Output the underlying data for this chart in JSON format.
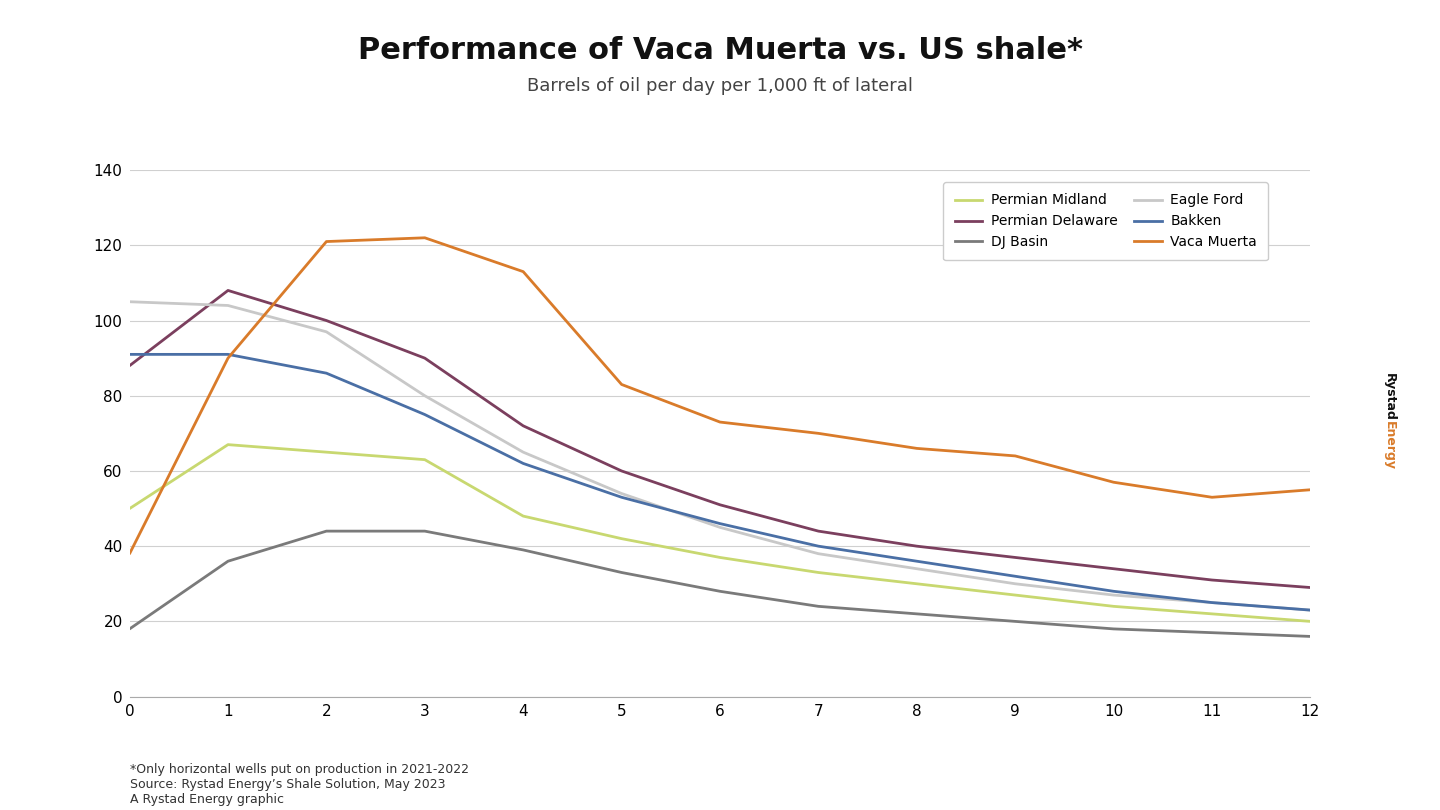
{
  "title": "Performance of Vaca Muerta vs. US shale*",
  "subtitle": "Barrels of oil per day per 1,000 ft of lateral",
  "footnote": "*Only horizontal wells put on production in 2021-2022\nSource: Rystad Energy’s Shale Solution, May 2023\nA Rystad Energy graphic",
  "xlim": [
    0,
    12
  ],
  "ylim": [
    0,
    140
  ],
  "xticks": [
    0,
    1,
    2,
    3,
    4,
    5,
    6,
    7,
    8,
    9,
    10,
    11,
    12
  ],
  "yticks": [
    0,
    20,
    40,
    60,
    80,
    100,
    120,
    140
  ],
  "series": {
    "Permian Midland": {
      "color": "#c8d870",
      "x": [
        0,
        1,
        2,
        3,
        4,
        5,
        6,
        7,
        8,
        9,
        10,
        11,
        12
      ],
      "y": [
        50,
        67,
        65,
        63,
        48,
        42,
        37,
        33,
        30,
        27,
        24,
        22,
        20
      ]
    },
    "Permian Delaware": {
      "color": "#7b3f5e",
      "x": [
        0,
        1,
        2,
        3,
        4,
        5,
        6,
        7,
        8,
        9,
        10,
        11,
        12
      ],
      "y": [
        88,
        108,
        100,
        90,
        72,
        60,
        51,
        44,
        40,
        37,
        34,
        31,
        29
      ]
    },
    "DJ Basin": {
      "color": "#7a7a7a",
      "x": [
        0,
        1,
        2,
        3,
        4,
        5,
        6,
        7,
        8,
        9,
        10,
        11,
        12
      ],
      "y": [
        18,
        36,
        44,
        44,
        39,
        33,
        28,
        24,
        22,
        20,
        18,
        17,
        16
      ]
    },
    "Eagle Ford": {
      "color": "#c8c8c8",
      "x": [
        0,
        1,
        2,
        3,
        4,
        5,
        6,
        7,
        8,
        9,
        10,
        11,
        12
      ],
      "y": [
        105,
        104,
        97,
        80,
        65,
        54,
        45,
        38,
        34,
        30,
        27,
        25,
        23
      ]
    },
    "Bakken": {
      "color": "#4a6fa5",
      "x": [
        0,
        1,
        2,
        3,
        4,
        5,
        6,
        7,
        8,
        9,
        10,
        11,
        12
      ],
      "y": [
        91,
        91,
        86,
        75,
        62,
        53,
        46,
        40,
        36,
        32,
        28,
        25,
        23
      ]
    },
    "Vaca Muerta": {
      "color": "#d97b2a",
      "x": [
        0,
        1,
        2,
        3,
        4,
        5,
        6,
        7,
        8,
        9,
        10,
        11,
        12
      ],
      "y": [
        38,
        90,
        121,
        122,
        113,
        83,
        73,
        70,
        66,
        64,
        57,
        53,
        55
      ]
    }
  },
  "legend_order": [
    "Permian Midland",
    "Permian Delaware",
    "DJ Basin",
    "Eagle Ford",
    "Bakken",
    "Vaca Muerta"
  ],
  "background_color": "#ffffff",
  "title_fontsize": 22,
  "subtitle_fontsize": 13,
  "footnote_fontsize": 9,
  "axis_fontsize": 11,
  "legend_fontsize": 10,
  "watermark_rystad_color": "#111111",
  "watermark_energy_color": "#d97b2a"
}
